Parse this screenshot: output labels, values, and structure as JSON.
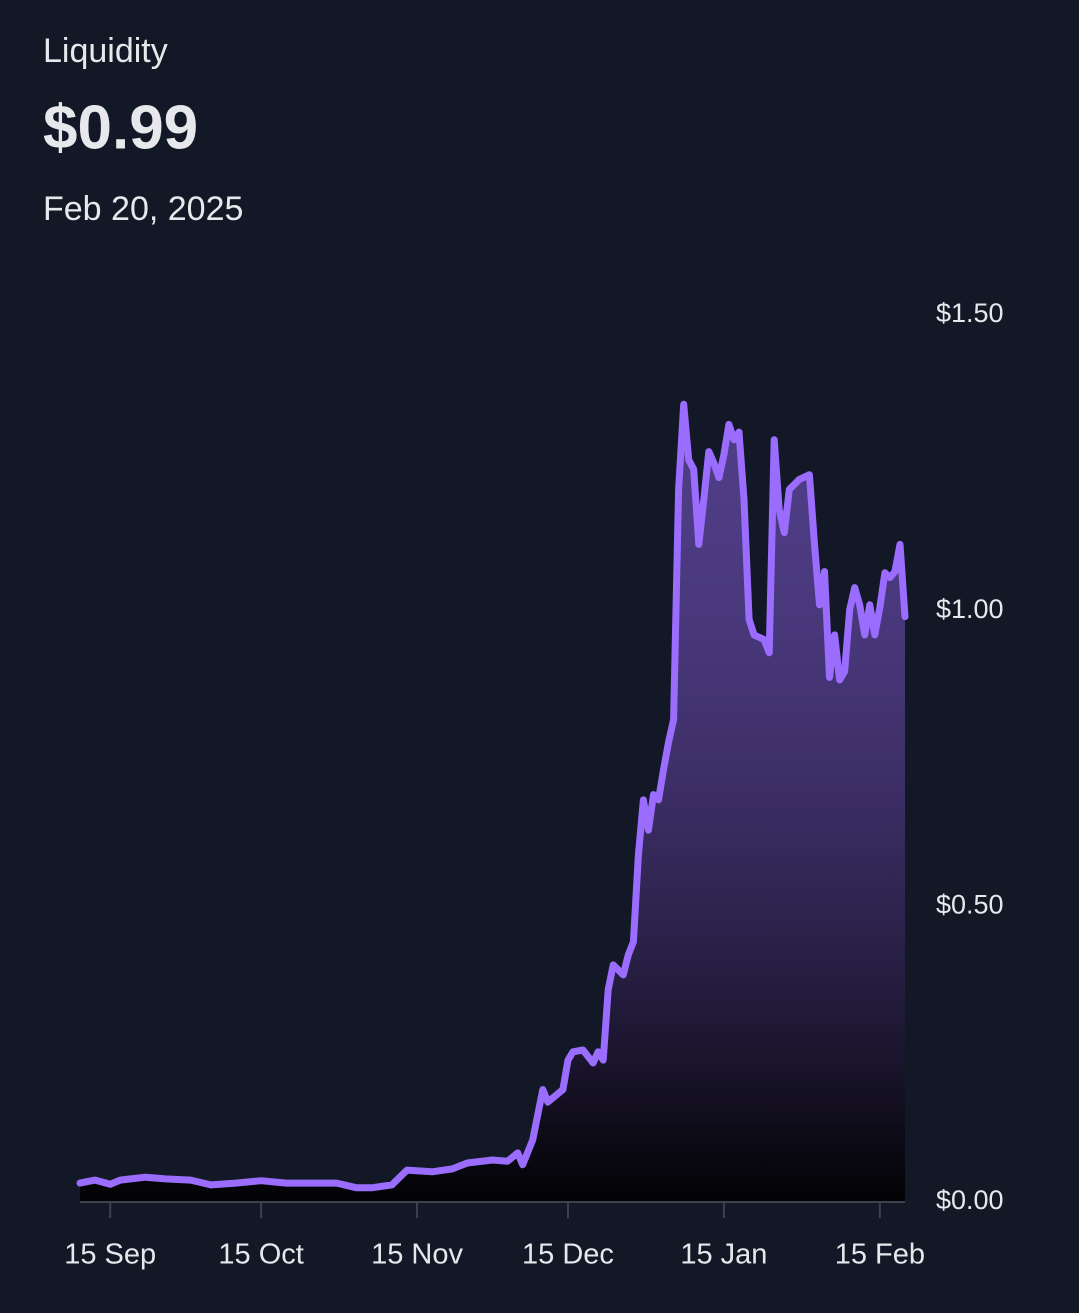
{
  "chart_data": {
    "type": "area",
    "title": "Liquidity",
    "current_value": "$0.99",
    "current_date": "Feb 20, 2025",
    "color": "#9b6dff",
    "x": [
      "2024-09-09",
      "2024-09-12",
      "2024-09-15",
      "2024-09-17",
      "2024-09-22",
      "2024-09-26",
      "2024-10-01",
      "2024-10-05",
      "2024-10-10",
      "2024-10-15",
      "2024-10-20",
      "2024-10-25",
      "2024-10-30",
      "2024-11-03",
      "2024-11-06",
      "2024-11-10",
      "2024-11-13",
      "2024-11-18",
      "2024-11-22",
      "2024-11-25",
      "2024-11-30",
      "2024-12-03",
      "2024-12-05",
      "2024-12-06",
      "2024-12-08",
      "2024-12-10",
      "2024-12-11",
      "2024-12-14",
      "2024-12-15",
      "2024-12-16",
      "2024-12-18",
      "2024-12-20",
      "2024-12-21",
      "2024-12-22",
      "2024-12-23",
      "2024-12-24",
      "2024-12-26",
      "2024-12-27",
      "2024-12-28",
      "2024-12-29",
      "2024-12-30",
      "2024-12-31",
      "2025-01-01",
      "2025-01-02",
      "2025-01-03",
      "2025-01-04",
      "2025-01-05",
      "2025-01-06",
      "2025-01-07",
      "2025-01-08",
      "2025-01-09",
      "2025-01-10",
      "2025-01-11",
      "2025-01-12",
      "2025-01-13",
      "2025-01-14",
      "2025-01-15",
      "2025-01-16",
      "2025-01-17",
      "2025-01-18",
      "2025-01-19",
      "2025-01-20",
      "2025-01-21",
      "2025-01-23",
      "2025-01-24",
      "2025-01-25",
      "2025-01-26",
      "2025-01-27",
      "2025-01-28",
      "2025-01-30",
      "2025-02-01",
      "2025-02-02",
      "2025-02-03",
      "2025-02-04",
      "2025-02-05",
      "2025-02-06",
      "2025-02-07",
      "2025-02-08",
      "2025-02-09",
      "2025-02-10",
      "2025-02-11",
      "2025-02-12",
      "2025-02-13",
      "2025-02-14",
      "2025-02-15",
      "2025-02-16",
      "2025-02-17",
      "2025-02-18",
      "2025-02-19",
      "2025-02-20"
    ],
    "values": [
      0.032,
      0.037,
      0.03,
      0.037,
      0.042,
      0.039,
      0.037,
      0.029,
      0.032,
      0.036,
      0.032,
      0.032,
      0.032,
      0.024,
      0.024,
      0.029,
      0.054,
      0.051,
      0.056,
      0.066,
      0.071,
      0.069,
      0.083,
      0.063,
      0.105,
      0.19,
      0.169,
      0.19,
      0.24,
      0.254,
      0.257,
      0.235,
      0.254,
      0.24,
      0.359,
      0.401,
      0.384,
      0.418,
      0.44,
      0.587,
      0.68,
      0.629,
      0.689,
      0.68,
      0.731,
      0.778,
      0.816,
      1.205,
      1.349,
      1.255,
      1.239,
      1.112,
      1.188,
      1.269,
      1.25,
      1.225,
      1.264,
      1.315,
      1.289,
      1.302,
      1.188,
      0.985,
      0.959,
      0.951,
      0.929,
      1.289,
      1.171,
      1.132,
      1.205,
      1.222,
      1.23,
      1.112,
      1.01,
      1.066,
      0.887,
      0.959,
      0.883,
      0.897,
      1.002,
      1.039,
      1.01,
      0.959,
      1.01,
      0.959,
      1.005,
      1.064,
      1.056,
      1.066,
      1.112,
      0.99
    ],
    "xlim": [
      "2024-09-09",
      "2025-02-20"
    ],
    "xticks": [
      {
        "value": "2024-09-15",
        "label": "15 Sep"
      },
      {
        "value": "2024-10-15",
        "label": "15 Oct"
      },
      {
        "value": "2024-11-15",
        "label": "15 Nov"
      },
      {
        "value": "2024-12-15",
        "label": "15 Dec"
      },
      {
        "value": "2025-01-15",
        "label": "15 Jan"
      },
      {
        "value": "2025-02-15",
        "label": "15 Feb"
      }
    ],
    "ylim": [
      0,
      1.5
    ],
    "yticks": [
      {
        "value": 0,
        "label": "$0.00"
      },
      {
        "value": 0.5,
        "label": "$0.50"
      },
      {
        "value": 1,
        "label": "$1.00"
      },
      {
        "value": 1.5,
        "label": "$1.50"
      }
    ],
    "grid": false
  }
}
